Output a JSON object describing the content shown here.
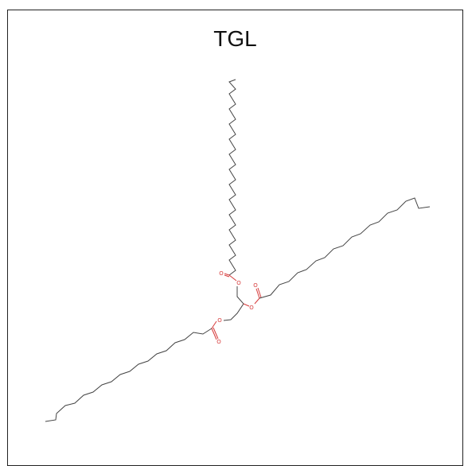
{
  "figure": {
    "title": "TGL",
    "molecule": {
      "atoms": [
        {
          "id": "c_glycerol_1",
          "element": "C"
        },
        {
          "id": "c_glycerol_2",
          "element": "C"
        },
        {
          "id": "c_glycerol_3",
          "element": "C"
        },
        {
          "id": "o_ester_1",
          "element": "O"
        },
        {
          "id": "o_ester_2",
          "element": "O"
        },
        {
          "id": "o_ester_3",
          "element": "O"
        },
        {
          "id": "o_carbonyl_1",
          "element": "O"
        },
        {
          "id": "o_carbonyl_2",
          "element": "O"
        },
        {
          "id": "o_carbonyl_3",
          "element": "O"
        }
      ],
      "oxygen_label": "O",
      "chains": [
        {
          "name": "upper-acyl-chain",
          "carbons": 18
        },
        {
          "name": "right-acyl-chain",
          "carbons": 18
        },
        {
          "name": "lower-left-acyl-chain",
          "carbons": 18
        }
      ],
      "colors": {
        "carbon_bond": "#444444",
        "oxygen": "#d63a3a"
      }
    }
  }
}
